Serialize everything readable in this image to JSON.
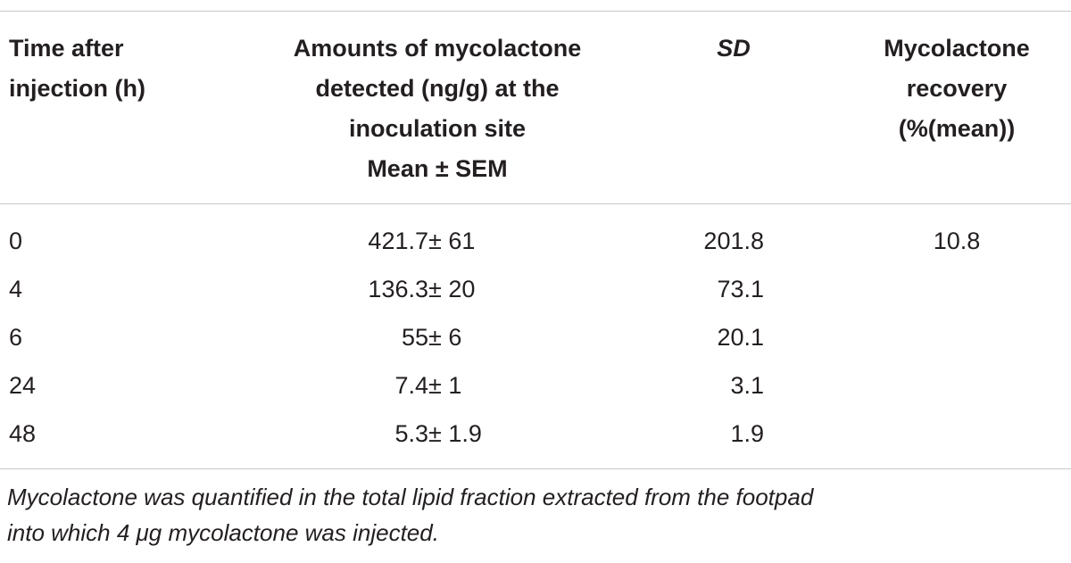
{
  "table": {
    "header": [
      [
        "Time after",
        "injection (h)"
      ],
      [
        "Amounts of mycolactone",
        "detected (ng/g) at the",
        "inoculation site",
        "Mean ± SEM"
      ],
      [
        "SD"
      ],
      [
        "Mycolactone",
        "recovery",
        "(%(mean))"
      ]
    ],
    "rows": [
      [
        "0",
        "421.7 ± 61",
        "201.8",
        "10.8"
      ],
      [
        "4",
        "136.3 ± 20",
        "73.1"
      ],
      [
        "6",
        "55 ± 6",
        "20.1"
      ],
      [
        "24",
        "7.4 ± 1",
        "3.1"
      ],
      [
        "48",
        "5.3 ± 1.9",
        "1.9"
      ]
    ]
  },
  "footnote": [
    "Mycolactone was quantified in the total lipid fraction extracted from the footpad",
    "into which 4 μg mycolactone was injected."
  ]
}
